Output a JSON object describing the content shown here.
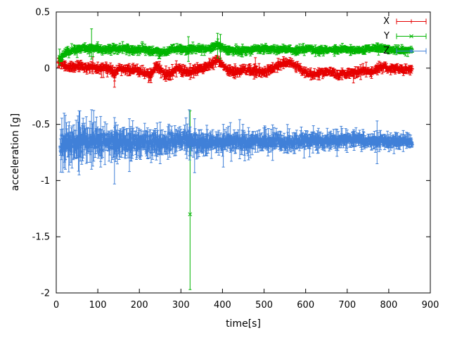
{
  "chart_data": {
    "type": "scatter",
    "style": "errorbars",
    "title": "",
    "xlabel": "time[s]",
    "ylabel": "acceleration [g]",
    "xlim": [
      0,
      900
    ],
    "ylim": [
      -2,
      0.5
    ],
    "grid": false,
    "legend_position": "top-right-inside",
    "x_ticks": [
      0,
      100,
      200,
      300,
      400,
      500,
      600,
      700,
      800,
      900
    ],
    "y_tick_values": [
      0.5,
      0,
      -0.5,
      -1,
      -1.5,
      -2
    ],
    "y_tick_labels": [
      "0.5",
      "0",
      "-0.5",
      "-1",
      "-1.5",
      "-2"
    ],
    "series": [
      {
        "name": "X",
        "color": "#e60000",
        "marker": "plus",
        "n_points": 780,
        "x_start": 5,
        "x_end": 856,
        "trend": [
          [
            5,
            0.05
          ],
          [
            15,
            0.04
          ],
          [
            25,
            0.01
          ],
          [
            40,
            0.01
          ],
          [
            60,
            0.02
          ],
          [
            75,
            0.0
          ],
          [
            90,
            0.02
          ],
          [
            100,
            -0.01
          ],
          [
            115,
            0.0
          ],
          [
            130,
            -0.01
          ],
          [
            140,
            -0.06
          ],
          [
            150,
            0.0
          ],
          [
            165,
            -0.01
          ],
          [
            180,
            -0.02
          ],
          [
            195,
            -0.01
          ],
          [
            210,
            -0.04
          ],
          [
            225,
            -0.07
          ],
          [
            240,
            0.02
          ],
          [
            252,
            -0.02
          ],
          [
            262,
            -0.06
          ],
          [
            275,
            -0.06
          ],
          [
            290,
            0.0
          ],
          [
            302,
            -0.02
          ],
          [
            318,
            -0.04
          ],
          [
            335,
            -0.02
          ],
          [
            355,
            0.0
          ],
          [
            372,
            0.03
          ],
          [
            388,
            0.08
          ],
          [
            400,
            0.03
          ],
          [
            415,
            -0.02
          ],
          [
            430,
            -0.04
          ],
          [
            448,
            -0.01
          ],
          [
            468,
            -0.02
          ],
          [
            488,
            -0.03
          ],
          [
            505,
            -0.03
          ],
          [
            520,
            0.0
          ],
          [
            538,
            0.03
          ],
          [
            555,
            0.05
          ],
          [
            572,
            0.04
          ],
          [
            588,
            -0.01
          ],
          [
            605,
            -0.05
          ],
          [
            622,
            -0.06
          ],
          [
            640,
            -0.04
          ],
          [
            658,
            -0.03
          ],
          [
            675,
            -0.06
          ],
          [
            695,
            -0.05
          ],
          [
            712,
            -0.04
          ],
          [
            728,
            -0.03
          ],
          [
            745,
            -0.02
          ],
          [
            760,
            -0.04
          ],
          [
            775,
            0.0
          ],
          [
            788,
            0.02
          ],
          [
            800,
            -0.01
          ],
          [
            815,
            0.0
          ],
          [
            832,
            -0.01
          ],
          [
            856,
            -0.01
          ]
        ],
        "noise_sd": [
          [
            5,
            0.013
          ],
          [
            856,
            0.012
          ]
        ],
        "err_size": [
          [
            5,
            0.022
          ],
          [
            856,
            0.02
          ]
        ],
        "outliers": [
          {
            "x": 8,
            "y": 0.05,
            "lo": 0.0,
            "hi": 0.1
          },
          {
            "x": 88,
            "y": 0.02,
            "lo": -0.05,
            "hi": 0.1
          },
          {
            "x": 140,
            "y": -0.07,
            "lo": -0.17,
            "hi": 0.01
          },
          {
            "x": 228,
            "y": -0.07,
            "lo": -0.13,
            "hi": -0.01
          },
          {
            "x": 322,
            "y": -0.03,
            "lo": -0.1,
            "hi": 0.04
          }
        ]
      },
      {
        "name": "Y",
        "color": "#00b400",
        "marker": "cross",
        "n_points": 760,
        "x_start": 8,
        "x_end": 856,
        "trend": [
          [
            8,
            0.1
          ],
          [
            20,
            0.13
          ],
          [
            35,
            0.16
          ],
          [
            55,
            0.17
          ],
          [
            75,
            0.17
          ],
          [
            90,
            0.18
          ],
          [
            110,
            0.17
          ],
          [
            130,
            0.17
          ],
          [
            150,
            0.18
          ],
          [
            170,
            0.17
          ],
          [
            195,
            0.16
          ],
          [
            215,
            0.17
          ],
          [
            235,
            0.15
          ],
          [
            255,
            0.14
          ],
          [
            275,
            0.16
          ],
          [
            295,
            0.17
          ],
          [
            315,
            0.16
          ],
          [
            335,
            0.17
          ],
          [
            358,
            0.17
          ],
          [
            378,
            0.19
          ],
          [
            392,
            0.2
          ],
          [
            408,
            0.17
          ],
          [
            428,
            0.16
          ],
          [
            450,
            0.16
          ],
          [
            478,
            0.17
          ],
          [
            508,
            0.17
          ],
          [
            538,
            0.17
          ],
          [
            568,
            0.16
          ],
          [
            598,
            0.17
          ],
          [
            628,
            0.16
          ],
          [
            658,
            0.16
          ],
          [
            688,
            0.17
          ],
          [
            718,
            0.16
          ],
          [
            748,
            0.17
          ],
          [
            768,
            0.18
          ],
          [
            788,
            0.17
          ],
          [
            808,
            0.16
          ],
          [
            830,
            0.16
          ],
          [
            856,
            0.16
          ]
        ],
        "noise_sd": [
          [
            8,
            0.013
          ],
          [
            856,
            0.011
          ]
        ],
        "err_size": [
          [
            8,
            0.018
          ],
          [
            856,
            0.016
          ]
        ],
        "outliers": [
          {
            "x": 8,
            "y": 0.1,
            "lo": 0.03,
            "hi": 0.17
          },
          {
            "x": 85,
            "y": 0.19,
            "lo": 0.08,
            "hi": 0.35
          },
          {
            "x": 318,
            "y": 0.17,
            "lo": 0.06,
            "hi": 0.28
          },
          {
            "x": 322,
            "y": -1.3,
            "lo": -1.97,
            "hi": -0.38
          },
          {
            "x": 388,
            "y": 0.2,
            "lo": 0.09,
            "hi": 0.31
          },
          {
            "x": 395,
            "y": 0.19,
            "lo": 0.08,
            "hi": 0.3
          }
        ]
      },
      {
        "name": "Z",
        "color": "#4080d8",
        "marker": "star",
        "n_points": 760,
        "x_start": 10,
        "x_end": 856,
        "trend": [
          [
            10,
            -0.67
          ],
          [
            40,
            -0.66
          ],
          [
            70,
            -0.65
          ],
          [
            100,
            -0.66
          ],
          [
            130,
            -0.66
          ],
          [
            160,
            -0.65
          ],
          [
            190,
            -0.66
          ],
          [
            220,
            -0.65
          ],
          [
            250,
            -0.66
          ],
          [
            280,
            -0.65
          ],
          [
            310,
            -0.64
          ],
          [
            340,
            -0.66
          ],
          [
            370,
            -0.65
          ],
          [
            400,
            -0.66
          ],
          [
            430,
            -0.65
          ],
          [
            460,
            -0.66
          ],
          [
            490,
            -0.65
          ],
          [
            520,
            -0.65
          ],
          [
            550,
            -0.66
          ],
          [
            580,
            -0.65
          ],
          [
            610,
            -0.65
          ],
          [
            640,
            -0.66
          ],
          [
            670,
            -0.64
          ],
          [
            700,
            -0.63
          ],
          [
            730,
            -0.64
          ],
          [
            760,
            -0.65
          ],
          [
            790,
            -0.65
          ],
          [
            820,
            -0.65
          ],
          [
            856,
            -0.65
          ]
        ],
        "noise_sd": [
          [
            10,
            0.038
          ],
          [
            200,
            0.032
          ],
          [
            400,
            0.028
          ],
          [
            600,
            0.022
          ],
          [
            856,
            0.017
          ]
        ],
        "err_size": [
          [
            10,
            0.085
          ],
          [
            150,
            0.07
          ],
          [
            300,
            0.06
          ],
          [
            450,
            0.05
          ],
          [
            650,
            0.04
          ],
          [
            856,
            0.035
          ]
        ],
        "outliers": [
          {
            "x": 22,
            "y": -0.65,
            "lo": -0.9,
            "hi": -0.42
          },
          {
            "x": 55,
            "y": -0.66,
            "lo": -0.95,
            "hi": -0.38
          },
          {
            "x": 85,
            "y": -0.62,
            "lo": -0.9,
            "hi": -0.37
          },
          {
            "x": 107,
            "y": -0.66,
            "lo": -0.88,
            "hi": -0.43
          },
          {
            "x": 140,
            "y": -0.7,
            "lo": -1.03,
            "hi": -0.44
          },
          {
            "x": 176,
            "y": -0.67,
            "lo": -0.92,
            "hi": -0.45
          },
          {
            "x": 250,
            "y": -0.66,
            "lo": -0.85,
            "hi": -0.48
          },
          {
            "x": 320,
            "y": -0.56,
            "lo": -0.78,
            "hi": -0.37
          },
          {
            "x": 333,
            "y": -0.68,
            "lo": -0.93,
            "hi": -0.45
          },
          {
            "x": 402,
            "y": -0.67,
            "lo": -0.88,
            "hi": -0.5
          },
          {
            "x": 772,
            "y": -0.66,
            "lo": -0.85,
            "hi": -0.47
          }
        ]
      }
    ]
  }
}
